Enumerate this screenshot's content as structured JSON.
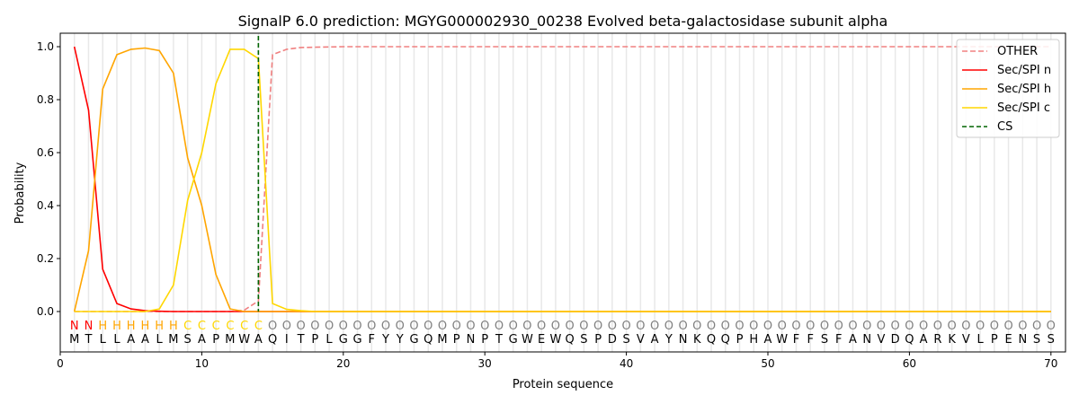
{
  "chart_data": {
    "type": "line",
    "title": "SignalP 6.0 prediction: MGYG000002930_00238 Evolved beta-galactosidase subunit alpha",
    "xlabel": "Protein sequence",
    "ylabel": "Probability",
    "xlim": [
      0,
      71
    ],
    "ylim": [
      -0.15,
      1.05
    ],
    "xticks": [
      0,
      10,
      20,
      30,
      40,
      50,
      60,
      70
    ],
    "yticks": [
      0.0,
      0.2,
      0.4,
      0.6,
      0.8,
      1.0
    ],
    "legend_position": "top-right",
    "sequence": [
      "M",
      "T",
      "L",
      "L",
      "A",
      "A",
      "L",
      "M",
      "S",
      "A",
      "P",
      "M",
      "W",
      "A",
      "Q",
      "I",
      "T",
      "P",
      "L",
      "G",
      "G",
      "F",
      "Y",
      "Y",
      "G",
      "Q",
      "M",
      "P",
      "N",
      "P",
      "T",
      "G",
      "W",
      "E",
      "W",
      "Q",
      "S",
      "P",
      "D",
      "S",
      "V",
      "A",
      "Y",
      "N",
      "K",
      "Q",
      "Q",
      "P",
      "H",
      "A",
      "W",
      "F",
      "F",
      "S",
      "F",
      "A",
      "N",
      "V",
      "D",
      "Q",
      "A",
      "R",
      "K",
      "V",
      "L",
      "P",
      "E",
      "N",
      "S",
      "S"
    ],
    "labels": [
      "N",
      "N",
      "H",
      "H",
      "H",
      "H",
      "H",
      "H",
      "C",
      "C",
      "C",
      "C",
      "C",
      "C",
      "O",
      "O",
      "O",
      "O",
      "O",
      "O",
      "O",
      "O",
      "O",
      "O",
      "O",
      "O",
      "O",
      "O",
      "O",
      "O",
      "O",
      "O",
      "O",
      "O",
      "O",
      "O",
      "O",
      "O",
      "O",
      "O",
      "O",
      "O",
      "O",
      "O",
      "O",
      "O",
      "O",
      "O",
      "O",
      "O",
      "O",
      "O",
      "O",
      "O",
      "O",
      "O",
      "O",
      "O",
      "O",
      "O",
      "O",
      "O",
      "O",
      "O",
      "O",
      "O",
      "O",
      "O",
      "O",
      "O"
    ],
    "label_colors": {
      "N": "#ff0000",
      "H": "#ffa500",
      "C": "#ffd700",
      "O": "#808080"
    },
    "cs_position": 14,
    "series": [
      {
        "name": "OTHER",
        "color": "#f08080",
        "dash": true,
        "sparse": {
          "1": 0,
          "12": 0,
          "13": 0.005,
          "14": 0.04,
          "15": 0.97,
          "16": 0.99,
          "17": 0.997,
          "18": 0.998,
          "19": 0.999,
          "20": 1.0
        }
      },
      {
        "name": "Sec/SPI n",
        "color": "#ff0000",
        "dash": false,
        "sparse": {
          "1": 1.0,
          "2": 0.76,
          "3": 0.16,
          "4": 0.03,
          "5": 0.01,
          "6": 0.003,
          "7": 0.001,
          "8": 0
        }
      },
      {
        "name": "Sec/SPI h",
        "color": "#ffa500",
        "dash": false,
        "sparse": {
          "1": 0,
          "2": 0.23,
          "3": 0.84,
          "4": 0.97,
          "5": 0.99,
          "6": 0.995,
          "7": 0.985,
          "8": 0.9,
          "9": 0.58,
          "10": 0.4,
          "11": 0.14,
          "12": 0.01,
          "13": 0
        }
      },
      {
        "name": "Sec/SPI c",
        "color": "#ffd700",
        "dash": false,
        "sparse": {
          "1": 0,
          "6": 0,
          "7": 0.01,
          "8": 0.1,
          "9": 0.42,
          "10": 0.6,
          "11": 0.86,
          "12": 0.99,
          "13": 0.99,
          "14": 0.955,
          "15": 0.03,
          "16": 0.008,
          "17": 0.003,
          "18": 0
        }
      }
    ],
    "cs_legend": {
      "name": "CS",
      "color": "#006400"
    }
  }
}
